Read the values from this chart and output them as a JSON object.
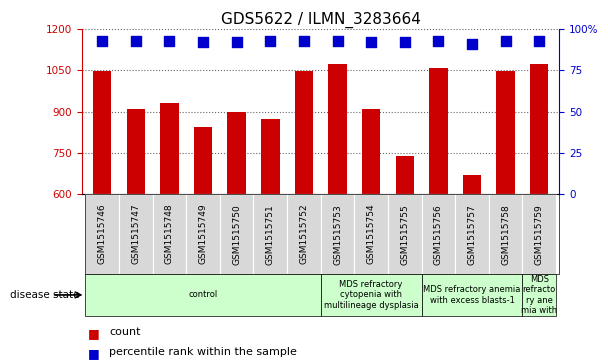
{
  "title": "GDS5622 / ILMN_3283664",
  "samples": [
    "GSM1515746",
    "GSM1515747",
    "GSM1515748",
    "GSM1515749",
    "GSM1515750",
    "GSM1515751",
    "GSM1515752",
    "GSM1515753",
    "GSM1515754",
    "GSM1515755",
    "GSM1515756",
    "GSM1515757",
    "GSM1515758",
    "GSM1515759"
  ],
  "counts": [
    1047,
    908,
    930,
    845,
    897,
    873,
    1048,
    1072,
    908,
    738,
    1060,
    670,
    1047,
    1072
  ],
  "percentile_ranks": [
    93,
    93,
    93,
    92,
    92,
    93,
    93,
    93,
    92,
    92,
    93,
    91,
    93,
    93
  ],
  "ylim_left": [
    600,
    1200
  ],
  "ylim_right": [
    0,
    100
  ],
  "yticks_left": [
    600,
    750,
    900,
    1050,
    1200
  ],
  "yticks_right": [
    0,
    25,
    50,
    75,
    100
  ],
  "bar_color": "#CC0000",
  "dot_color": "#0000CC",
  "disease_groups": [
    {
      "label": "control",
      "start": 0,
      "end": 7
    },
    {
      "label": "MDS refractory\ncytopenia with\nmultilineage dysplasia",
      "start": 7,
      "end": 10
    },
    {
      "label": "MDS refractory anemia\nwith excess blasts-1",
      "start": 10,
      "end": 13
    },
    {
      "label": "MDS\nrefracto\nry ane\nmia with",
      "start": 13,
      "end": 14
    }
  ],
  "disease_state_label": "disease state",
  "legend_count_label": "count",
  "legend_percentile_label": "percentile rank within the sample",
  "tick_color_left": "#CC0000",
  "tick_color_right": "#0000CC",
  "bar_width": 0.55,
  "dot_size": 55,
  "dot_marker": "s",
  "grid_color": "#666666",
  "title_fontsize": 11,
  "tick_fontsize": 7.5,
  "sample_fontsize": 6.5,
  "disease_fontsize": 6,
  "legend_fontsize": 8,
  "xlim": [
    -0.6,
    13.6
  ],
  "bg_color": "#D8D8D8",
  "disease_bg": "#CCFFCC",
  "fig_width": 6.08,
  "fig_height": 3.63
}
